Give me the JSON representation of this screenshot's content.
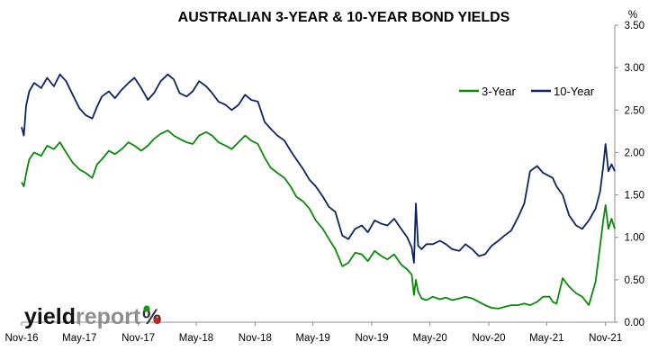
{
  "chart_data": {
    "type": "line",
    "title": "AUSTRALIAN 3-YEAR & 10-YEAR BOND YIELDS",
    "y_unit": "%",
    "xlabel": "",
    "ylabel": "",
    "ylim": [
      0,
      3.5
    ],
    "y_ticks": [
      0,
      0.5,
      1.0,
      1.5,
      2.0,
      2.5,
      3.0,
      3.5
    ],
    "y_tick_labels": [
      "0.00",
      "0.50",
      "1.00",
      "1.50",
      "2.00",
      "2.50",
      "3.00",
      "3.50"
    ],
    "x_range": [
      "2016-11-01",
      "2021-11-30"
    ],
    "x_ticks": [
      "2016-11-01",
      "2017-05-01",
      "2017-11-01",
      "2018-05-01",
      "2018-11-01",
      "2019-05-01",
      "2019-11-01",
      "2020-05-01",
      "2020-11-01",
      "2021-05-01",
      "2021-11-01"
    ],
    "x_tick_labels": [
      "Nov-16",
      "May-17",
      "Nov-17",
      "May-18",
      "Nov-18",
      "May-19",
      "Nov-19",
      "May-20",
      "Nov-20",
      "May-21",
      "Nov-21"
    ],
    "grid": false,
    "legend": "top-right",
    "series": [
      {
        "name": "3-Year",
        "color": "#0a8a0a",
        "x": [
          "2016-11-01",
          "2016-11-08",
          "2016-11-15",
          "2016-11-25",
          "2016-12-10",
          "2017-01-01",
          "2017-01-20",
          "2017-02-10",
          "2017-03-01",
          "2017-03-20",
          "2017-04-10",
          "2017-05-01",
          "2017-05-20",
          "2017-06-10",
          "2017-06-25",
          "2017-07-10",
          "2017-08-01",
          "2017-08-20",
          "2017-09-10",
          "2017-10-01",
          "2017-10-20",
          "2017-11-10",
          "2017-12-01",
          "2017-12-20",
          "2018-01-10",
          "2018-02-01",
          "2018-02-20",
          "2018-03-10",
          "2018-04-01",
          "2018-04-20",
          "2018-05-10",
          "2018-06-01",
          "2018-06-20",
          "2018-07-10",
          "2018-08-01",
          "2018-08-20",
          "2018-09-10",
          "2018-10-01",
          "2018-10-20",
          "2018-11-10",
          "2018-12-01",
          "2018-12-20",
          "2019-01-10",
          "2019-02-01",
          "2019-02-20",
          "2019-03-10",
          "2019-04-01",
          "2019-04-20",
          "2019-05-10",
          "2019-06-01",
          "2019-06-20",
          "2019-07-10",
          "2019-08-01",
          "2019-08-20",
          "2019-09-10",
          "2019-10-01",
          "2019-10-20",
          "2019-11-10",
          "2019-12-01",
          "2019-12-20",
          "2020-01-10",
          "2020-02-01",
          "2020-02-20",
          "2020-03-05",
          "2020-03-12",
          "2020-03-18",
          "2020-03-25",
          "2020-04-05",
          "2020-04-20",
          "2020-05-10",
          "2020-06-01",
          "2020-06-20",
          "2020-07-10",
          "2020-08-01",
          "2020-08-20",
          "2020-09-10",
          "2020-10-01",
          "2020-10-20",
          "2020-11-10",
          "2020-12-01",
          "2020-12-20",
          "2021-01-10",
          "2021-02-01",
          "2021-02-20",
          "2021-03-10",
          "2021-04-01",
          "2021-04-20",
          "2021-05-10",
          "2021-05-20",
          "2021-06-01",
          "2021-06-20",
          "2021-07-10",
          "2021-08-01",
          "2021-08-20",
          "2021-09-10",
          "2021-10-01",
          "2021-10-15",
          "2021-10-25",
          "2021-11-01",
          "2021-11-10",
          "2021-11-20",
          "2021-11-30"
        ],
        "values": [
          1.65,
          1.6,
          1.75,
          1.92,
          2.0,
          1.96,
          2.08,
          2.04,
          2.12,
          2.0,
          1.88,
          1.8,
          1.76,
          1.7,
          1.86,
          1.92,
          2.02,
          1.98,
          2.04,
          2.12,
          2.08,
          2.02,
          2.08,
          2.16,
          2.22,
          2.26,
          2.2,
          2.16,
          2.12,
          2.1,
          2.2,
          2.24,
          2.2,
          2.12,
          2.08,
          2.04,
          2.12,
          2.2,
          2.14,
          2.1,
          1.94,
          1.82,
          1.76,
          1.7,
          1.6,
          1.48,
          1.42,
          1.34,
          1.2,
          1.1,
          0.98,
          0.86,
          0.66,
          0.7,
          0.82,
          0.8,
          0.72,
          0.84,
          0.78,
          0.74,
          0.8,
          0.68,
          0.62,
          0.56,
          0.32,
          0.5,
          0.36,
          0.28,
          0.26,
          0.3,
          0.27,
          0.29,
          0.26,
          0.28,
          0.3,
          0.28,
          0.24,
          0.2,
          0.17,
          0.16,
          0.18,
          0.2,
          0.2,
          0.22,
          0.2,
          0.24,
          0.3,
          0.3,
          0.24,
          0.22,
          0.52,
          0.42,
          0.34,
          0.3,
          0.2,
          0.48,
          0.9,
          1.2,
          1.38,
          1.1,
          1.22,
          1.1
        ]
      },
      {
        "name": "10-Year",
        "color": "#0d2463",
        "x": [
          "2016-11-01",
          "2016-11-08",
          "2016-11-15",
          "2016-11-25",
          "2016-12-10",
          "2017-01-01",
          "2017-01-20",
          "2017-02-10",
          "2017-03-01",
          "2017-03-20",
          "2017-04-10",
          "2017-05-01",
          "2017-05-20",
          "2017-06-10",
          "2017-06-25",
          "2017-07-10",
          "2017-08-01",
          "2017-08-20",
          "2017-09-10",
          "2017-10-01",
          "2017-10-20",
          "2017-11-10",
          "2017-12-01",
          "2017-12-20",
          "2018-01-10",
          "2018-02-01",
          "2018-02-20",
          "2018-03-10",
          "2018-04-01",
          "2018-04-20",
          "2018-05-10",
          "2018-06-01",
          "2018-06-20",
          "2018-07-10",
          "2018-08-01",
          "2018-08-20",
          "2018-09-10",
          "2018-10-01",
          "2018-10-20",
          "2018-11-10",
          "2018-12-01",
          "2018-12-20",
          "2019-01-10",
          "2019-02-01",
          "2019-02-20",
          "2019-03-10",
          "2019-04-01",
          "2019-04-20",
          "2019-05-10",
          "2019-06-01",
          "2019-06-20",
          "2019-07-10",
          "2019-08-01",
          "2019-08-20",
          "2019-09-10",
          "2019-10-01",
          "2019-10-20",
          "2019-11-10",
          "2019-12-01",
          "2019-12-20",
          "2020-01-10",
          "2020-02-01",
          "2020-02-20",
          "2020-03-05",
          "2020-03-12",
          "2020-03-18",
          "2020-03-25",
          "2020-04-05",
          "2020-04-20",
          "2020-05-10",
          "2020-06-01",
          "2020-06-20",
          "2020-07-10",
          "2020-08-01",
          "2020-08-20",
          "2020-09-10",
          "2020-10-01",
          "2020-10-20",
          "2020-11-10",
          "2020-12-01",
          "2020-12-20",
          "2021-01-10",
          "2021-02-01",
          "2021-02-20",
          "2021-03-10",
          "2021-04-01",
          "2021-04-20",
          "2021-05-10",
          "2021-05-20",
          "2021-06-01",
          "2021-06-20",
          "2021-07-10",
          "2021-08-01",
          "2021-08-20",
          "2021-09-10",
          "2021-10-01",
          "2021-10-15",
          "2021-10-25",
          "2021-11-01",
          "2021-11-10",
          "2021-11-20",
          "2021-11-30"
        ],
        "values": [
          2.3,
          2.2,
          2.55,
          2.72,
          2.82,
          2.76,
          2.88,
          2.78,
          2.92,
          2.84,
          2.68,
          2.52,
          2.44,
          2.4,
          2.54,
          2.66,
          2.72,
          2.64,
          2.74,
          2.82,
          2.88,
          2.76,
          2.62,
          2.7,
          2.84,
          2.92,
          2.86,
          2.7,
          2.66,
          2.72,
          2.84,
          2.78,
          2.7,
          2.6,
          2.56,
          2.5,
          2.56,
          2.68,
          2.62,
          2.6,
          2.36,
          2.28,
          2.2,
          2.14,
          2.02,
          1.92,
          1.8,
          1.68,
          1.6,
          1.48,
          1.36,
          1.3,
          1.02,
          0.98,
          1.1,
          1.14,
          1.06,
          1.2,
          1.16,
          1.14,
          1.22,
          1.1,
          1.0,
          0.88,
          0.7,
          1.4,
          0.9,
          0.86,
          0.92,
          0.92,
          0.96,
          0.92,
          0.86,
          0.84,
          0.92,
          0.86,
          0.78,
          0.8,
          0.9,
          0.96,
          1.02,
          1.08,
          1.24,
          1.4,
          1.78,
          1.84,
          1.76,
          1.72,
          1.7,
          1.6,
          1.5,
          1.26,
          1.14,
          1.1,
          1.2,
          1.34,
          1.54,
          1.84,
          2.1,
          1.78,
          1.86,
          1.78
        ]
      }
    ]
  },
  "logo": {
    "text_dark": "yield",
    "text_gray": "report",
    "percent": "%"
  }
}
